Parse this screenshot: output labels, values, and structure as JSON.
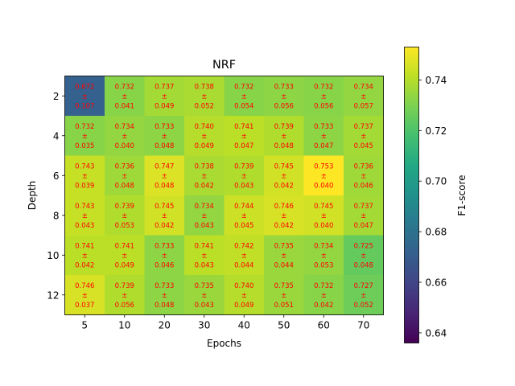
{
  "chart_data": {
    "type": "heatmap",
    "title": "NRF",
    "xlabel": "Epochs",
    "ylabel": "Depth",
    "x_categories": [
      "5",
      "10",
      "20",
      "30",
      "40",
      "50",
      "60",
      "70"
    ],
    "y_categories": [
      "2",
      "4",
      "6",
      "8",
      "10",
      "12"
    ],
    "values": [
      [
        0.672,
        0.732,
        0.737,
        0.738,
        0.732,
        0.733,
        0.732,
        0.734
      ],
      [
        0.732,
        0.734,
        0.733,
        0.74,
        0.741,
        0.739,
        0.733,
        0.737
      ],
      [
        0.743,
        0.736,
        0.747,
        0.738,
        0.739,
        0.745,
        0.753,
        0.736
      ],
      [
        0.743,
        0.739,
        0.745,
        0.734,
        0.744,
        0.746,
        0.745,
        0.737
      ],
      [
        0.741,
        0.741,
        0.733,
        0.741,
        0.742,
        0.735,
        0.734,
        0.725
      ],
      [
        0.746,
        0.739,
        0.733,
        0.735,
        0.74,
        0.735,
        0.732,
        0.727
      ]
    ],
    "errors": [
      [
        0.107,
        0.041,
        0.049,
        0.052,
        0.054,
        0.056,
        0.056,
        0.057
      ],
      [
        0.035,
        0.04,
        0.048,
        0.049,
        0.047,
        0.048,
        0.047,
        0.045
      ],
      [
        0.039,
        0.048,
        0.048,
        0.042,
        0.043,
        0.042,
        0.04,
        0.046
      ],
      [
        0.043,
        0.053,
        0.042,
        0.043,
        0.045,
        0.042,
        0.04,
        0.047
      ],
      [
        0.042,
        0.049,
        0.046,
        0.043,
        0.044,
        0.044,
        0.053,
        0.048
      ],
      [
        0.037,
        0.056,
        0.048,
        0.043,
        0.049,
        0.051,
        0.042,
        0.052
      ]
    ],
    "cell_label_separator": "±",
    "y_ticks": [
      "2",
      "4",
      "6",
      "8",
      "10",
      "12"
    ],
    "colorbar": {
      "label": "F1-score",
      "colormap": "viridis",
      "range": [
        0.636,
        0.753
      ],
      "ticks": [
        "0.64",
        "0.66",
        "0.68",
        "0.70",
        "0.72",
        "0.74"
      ]
    },
    "annotation_color": "#ff0000"
  }
}
